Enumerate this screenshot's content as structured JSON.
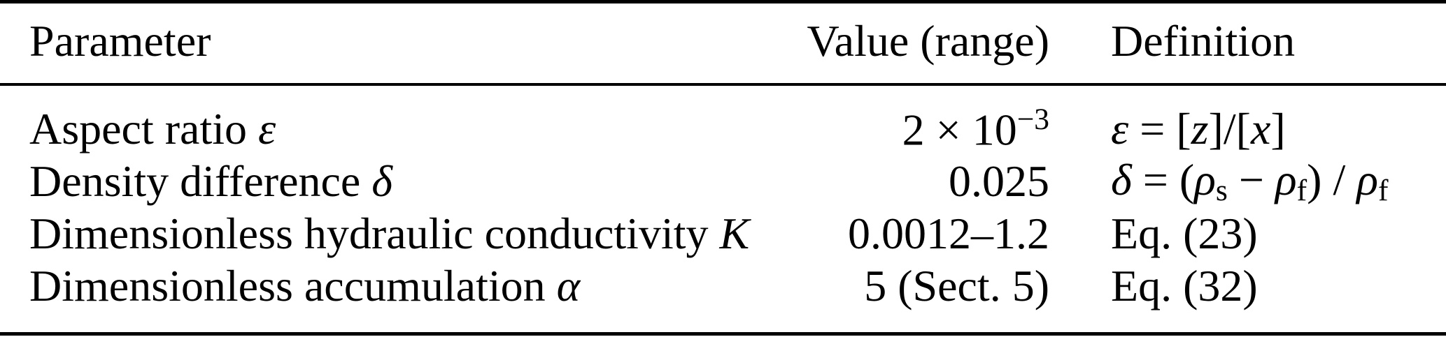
{
  "table": {
    "colors": {
      "text": "#000000",
      "background": "#ffffff",
      "rule": "#000000"
    },
    "columns": [
      {
        "label": "Parameter"
      },
      {
        "label": "Value (range)"
      },
      {
        "label": "Definition"
      }
    ],
    "rows": [
      {
        "parameter": [
          {
            "t": "r",
            "v": "Aspect ratio "
          },
          {
            "t": "i",
            "v": "ε"
          }
        ],
        "value": [
          {
            "t": "r",
            "v": "2 × 10"
          },
          {
            "t": "sup",
            "v": "−3"
          }
        ],
        "definition": [
          {
            "t": "i",
            "v": "ε"
          },
          {
            "t": "r",
            "v": " = ["
          },
          {
            "t": "i",
            "v": "z"
          },
          {
            "t": "r",
            "v": "]/["
          },
          {
            "t": "i",
            "v": "x"
          },
          {
            "t": "r",
            "v": "]"
          }
        ]
      },
      {
        "parameter": [
          {
            "t": "r",
            "v": "Density difference "
          },
          {
            "t": "i",
            "v": "δ"
          }
        ],
        "value": [
          {
            "t": "r",
            "v": "0.025"
          }
        ],
        "definition": [
          {
            "t": "i",
            "v": "δ"
          },
          {
            "t": "r",
            "v": " = ("
          },
          {
            "t": "i",
            "v": "ρ"
          },
          {
            "t": "sub",
            "v": "s"
          },
          {
            "t": "r",
            "v": " − "
          },
          {
            "t": "i",
            "v": "ρ"
          },
          {
            "t": "sub",
            "v": "f"
          },
          {
            "t": "r",
            "v": ") / "
          },
          {
            "t": "i",
            "v": "ρ"
          },
          {
            "t": "sub",
            "v": "f"
          }
        ]
      },
      {
        "parameter": [
          {
            "t": "r",
            "v": "Dimensionless hydraulic conductivity "
          },
          {
            "t": "i",
            "v": "K"
          }
        ],
        "value": [
          {
            "t": "r",
            "v": "0.0012–1.2"
          }
        ],
        "definition": [
          {
            "t": "r",
            "v": "Eq. (23)"
          }
        ]
      },
      {
        "parameter": [
          {
            "t": "r",
            "v": "Dimensionless accumulation "
          },
          {
            "t": "i",
            "v": "α"
          }
        ],
        "value": [
          {
            "t": "r",
            "v": "5 (Sect. 5)"
          }
        ],
        "definition": [
          {
            "t": "r",
            "v": "Eq. (32)"
          }
        ]
      }
    ]
  }
}
